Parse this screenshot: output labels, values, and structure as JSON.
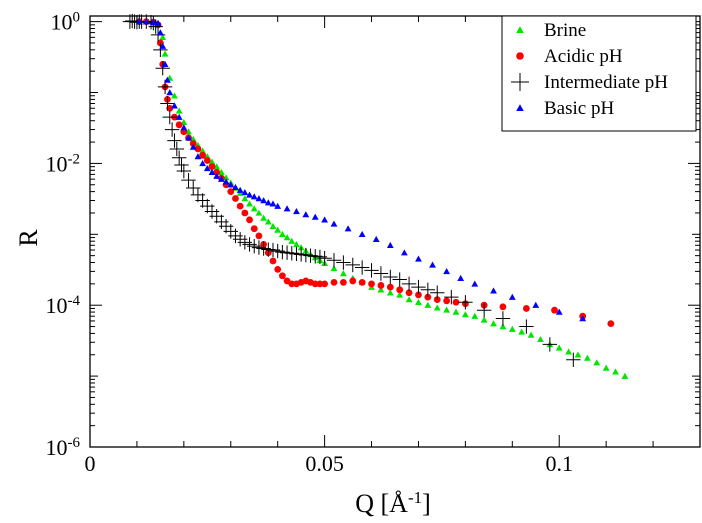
{
  "chart_data": {
    "type": "scatter",
    "xlabel_base": "Q [Å",
    "xlabel_exp": "-1",
    "xlabel_close": "]",
    "ylabel": "R",
    "xlim": [
      0,
      0.13
    ],
    "ylim": [
      1e-06,
      1.2
    ],
    "yscale": "log",
    "x_ticks": [
      {
        "value": 0,
        "label": "0"
      },
      {
        "value": 0.05,
        "label": "0.05"
      },
      {
        "value": 0.1,
        "label": "0.1"
      }
    ],
    "y_ticks": [
      {
        "value": 1e-06,
        "base": "10",
        "exp": "-6"
      },
      {
        "value": 0.0001,
        "base": "10",
        "exp": "-4"
      },
      {
        "value": 0.01,
        "base": "10",
        "exp": "-2"
      },
      {
        "value": 1,
        "base": "10",
        "exp": "0"
      }
    ],
    "legend_position": "top-right",
    "series": [
      {
        "name": "Brine",
        "marker": "triangle",
        "color": "#00e600",
        "points": [
          [
            0.0105,
            1.0
          ],
          [
            0.012,
            1.0
          ],
          [
            0.0135,
            0.98
          ],
          [
            0.0145,
            0.95
          ],
          [
            0.0155,
            0.6
          ],
          [
            0.016,
            0.35
          ],
          [
            0.017,
            0.16
          ],
          [
            0.018,
            0.09
          ],
          [
            0.019,
            0.055
          ],
          [
            0.02,
            0.038
          ],
          [
            0.021,
            0.028
          ],
          [
            0.022,
            0.022
          ],
          [
            0.023,
            0.018
          ],
          [
            0.024,
            0.015
          ],
          [
            0.025,
            0.0125
          ],
          [
            0.026,
            0.0105
          ],
          [
            0.027,
            0.009
          ],
          [
            0.028,
            0.0075
          ],
          [
            0.029,
            0.0063
          ],
          [
            0.03,
            0.0053
          ],
          [
            0.031,
            0.0045
          ],
          [
            0.032,
            0.0038
          ],
          [
            0.033,
            0.0032
          ],
          [
            0.034,
            0.0027
          ],
          [
            0.035,
            0.0023
          ],
          [
            0.036,
            0.002
          ],
          [
            0.037,
            0.0017
          ],
          [
            0.038,
            0.0015
          ],
          [
            0.039,
            0.0013
          ],
          [
            0.04,
            0.00115
          ],
          [
            0.041,
            0.001
          ],
          [
            0.042,
            0.0009
          ],
          [
            0.043,
            0.0008
          ],
          [
            0.044,
            0.00072
          ],
          [
            0.045,
            0.00065
          ],
          [
            0.046,
            0.00058
          ],
          [
            0.047,
            0.00052
          ],
          [
            0.048,
            0.00047
          ],
          [
            0.049,
            0.00043
          ],
          [
            0.05,
            0.00039
          ],
          [
            0.052,
            0.00033
          ],
          [
            0.054,
            0.00028
          ],
          [
            0.056,
            0.00024
          ],
          [
            0.058,
            0.00021
          ],
          [
            0.06,
            0.00018
          ],
          [
            0.062,
            0.000165
          ],
          [
            0.064,
            0.00015
          ],
          [
            0.066,
            0.00014
          ],
          [
            0.068,
            0.00012
          ],
          [
            0.07,
            0.00011
          ],
          [
            0.072,
            0.0001
          ],
          [
            0.074,
            9.2e-05
          ],
          [
            0.076,
            8.6e-05
          ],
          [
            0.078,
            8e-05
          ],
          [
            0.08,
            7.4e-05
          ],
          [
            0.082,
            7e-05
          ],
          [
            0.084,
            6.2e-05
          ],
          [
            0.086,
            5.5e-05
          ],
          [
            0.088,
            5e-05
          ],
          [
            0.09,
            4.6e-05
          ],
          [
            0.092,
            4.2e-05
          ],
          [
            0.094,
            3.8e-05
          ],
          [
            0.096,
            3.3e-05
          ],
          [
            0.098,
            2.8e-05
          ],
          [
            0.1,
            2.5e-05
          ],
          [
            0.102,
            2.2e-05
          ],
          [
            0.104,
            2e-05
          ],
          [
            0.106,
            1.8e-05
          ],
          [
            0.108,
            1.55e-05
          ],
          [
            0.11,
            1.3e-05
          ],
          [
            0.112,
            1.15e-05
          ],
          [
            0.114,
            1e-05
          ]
        ]
      },
      {
        "name": "Acidic pH",
        "marker": "circle",
        "color": "#ff0000",
        "points": [
          [
            0.0105,
            1.0
          ],
          [
            0.012,
            1.0
          ],
          [
            0.0135,
            0.98
          ],
          [
            0.0145,
            0.9
          ],
          [
            0.015,
            0.5
          ],
          [
            0.0155,
            0.25
          ],
          [
            0.016,
            0.12
          ],
          [
            0.0165,
            0.08
          ],
          [
            0.017,
            0.06
          ],
          [
            0.018,
            0.045
          ],
          [
            0.019,
            0.035
          ],
          [
            0.02,
            0.028
          ],
          [
            0.021,
            0.023
          ],
          [
            0.022,
            0.019
          ],
          [
            0.023,
            0.016
          ],
          [
            0.024,
            0.013
          ],
          [
            0.025,
            0.011
          ],
          [
            0.026,
            0.009
          ],
          [
            0.027,
            0.0075
          ],
          [
            0.028,
            0.0062
          ],
          [
            0.029,
            0.005
          ],
          [
            0.03,
            0.004
          ],
          [
            0.031,
            0.0032
          ],
          [
            0.032,
            0.0025
          ],
          [
            0.033,
            0.002
          ],
          [
            0.034,
            0.0016
          ],
          [
            0.035,
            0.0012
          ],
          [
            0.036,
            0.00095
          ],
          [
            0.037,
            0.00072
          ],
          [
            0.038,
            0.00055
          ],
          [
            0.039,
            0.00042
          ],
          [
            0.04,
            0.00032
          ],
          [
            0.041,
            0.00026
          ],
          [
            0.042,
            0.00022
          ],
          [
            0.043,
            0.0002
          ],
          [
            0.044,
            0.0002
          ],
          [
            0.045,
            0.00021
          ],
          [
            0.046,
            0.00022
          ],
          [
            0.047,
            0.00021
          ],
          [
            0.048,
            0.0002
          ],
          [
            0.049,
            0.0002
          ],
          [
            0.05,
            0.0002
          ],
          [
            0.052,
            0.00021
          ],
          [
            0.054,
            0.00021
          ],
          [
            0.056,
            0.00022
          ],
          [
            0.058,
            0.00021
          ],
          [
            0.06,
            0.0002
          ],
          [
            0.062,
            0.00019
          ],
          [
            0.064,
            0.00018
          ],
          [
            0.066,
            0.000165
          ],
          [
            0.068,
            0.00015
          ],
          [
            0.07,
            0.00014
          ],
          [
            0.072,
            0.00013
          ],
          [
            0.074,
            0.00012
          ],
          [
            0.076,
            0.000115
          ],
          [
            0.078,
            0.00011
          ],
          [
            0.08,
            0.000105
          ],
          [
            0.084,
            0.0001
          ],
          [
            0.088,
            9.5e-05
          ],
          [
            0.093,
            9e-05
          ],
          [
            0.099,
            8.5e-05
          ],
          [
            0.105,
            7e-05
          ],
          [
            0.111,
            5.5e-05
          ]
        ]
      },
      {
        "name": "Intermediate pH",
        "marker": "plus",
        "color": "#000000",
        "points": [
          [
            0.0085,
            1.0
          ],
          [
            0.009,
            1.02
          ],
          [
            0.0095,
            1.0
          ],
          [
            0.01,
            0.98
          ],
          [
            0.0105,
            1.0
          ],
          [
            0.011,
            1.0
          ],
          [
            0.012,
            1.0
          ],
          [
            0.013,
            0.98
          ],
          [
            0.0135,
            0.95
          ],
          [
            0.014,
            0.85
          ],
          [
            0.0145,
            0.65
          ],
          [
            0.015,
            0.4
          ],
          [
            0.0155,
            0.22
          ],
          [
            0.016,
            0.12
          ],
          [
            0.0165,
            0.07
          ],
          [
            0.017,
            0.045
          ],
          [
            0.0175,
            0.03
          ],
          [
            0.018,
            0.021
          ],
          [
            0.0185,
            0.016
          ],
          [
            0.019,
            0.012
          ],
          [
            0.0195,
            0.0095
          ],
          [
            0.02,
            0.0078
          ],
          [
            0.021,
            0.0058
          ],
          [
            0.022,
            0.0045
          ],
          [
            0.023,
            0.0036
          ],
          [
            0.024,
            0.003
          ],
          [
            0.025,
            0.0025
          ],
          [
            0.026,
            0.0021
          ],
          [
            0.027,
            0.0018
          ],
          [
            0.028,
            0.0015
          ],
          [
            0.029,
            0.0013
          ],
          [
            0.03,
            0.0011
          ],
          [
            0.031,
            0.00095
          ],
          [
            0.032,
            0.00085
          ],
          [
            0.033,
            0.00077
          ],
          [
            0.034,
            0.00072
          ],
          [
            0.035,
            0.00068
          ],
          [
            0.036,
            0.00065
          ],
          [
            0.037,
            0.00063
          ],
          [
            0.038,
            0.00061
          ],
          [
            0.039,
            0.0006
          ],
          [
            0.04,
            0.00058
          ],
          [
            0.041,
            0.00056
          ],
          [
            0.042,
            0.00055
          ],
          [
            0.043,
            0.00054
          ],
          [
            0.044,
            0.00053
          ],
          [
            0.045,
            0.00052
          ],
          [
            0.046,
            0.00051
          ],
          [
            0.047,
            0.0005
          ],
          [
            0.048,
            0.00049
          ],
          [
            0.049,
            0.00048
          ],
          [
            0.05,
            0.00046
          ],
          [
            0.052,
            0.00043
          ],
          [
            0.054,
            0.0004
          ],
          [
            0.056,
            0.00037
          ],
          [
            0.058,
            0.00034
          ],
          [
            0.06,
            0.00031
          ],
          [
            0.062,
            0.00028
          ],
          [
            0.064,
            0.00025
          ],
          [
            0.066,
            0.00023
          ],
          [
            0.068,
            0.0002
          ],
          [
            0.07,
            0.00018
          ],
          [
            0.072,
            0.000165
          ],
          [
            0.074,
            0.00015
          ],
          [
            0.077,
            0.00013
          ],
          [
            0.08,
            0.00011
          ],
          [
            0.084,
            8.5e-05
          ],
          [
            0.088,
            6.5e-05
          ],
          [
            0.093,
            5e-05
          ],
          [
            0.098,
            2.8e-05
          ],
          [
            0.103,
            1.7e-05
          ]
        ]
      },
      {
        "name": "Basic pH",
        "marker": "triangle",
        "color": "#0000ff",
        "points": [
          [
            0.0105,
            1.0
          ],
          [
            0.012,
            1.0
          ],
          [
            0.0135,
            0.98
          ],
          [
            0.0145,
            0.95
          ],
          [
            0.015,
            0.7
          ],
          [
            0.0155,
            0.45
          ],
          [
            0.016,
            0.25
          ],
          [
            0.0165,
            0.15
          ],
          [
            0.017,
            0.1
          ],
          [
            0.018,
            0.065
          ],
          [
            0.019,
            0.045
          ],
          [
            0.02,
            0.032
          ],
          [
            0.021,
            0.023
          ],
          [
            0.022,
            0.017
          ],
          [
            0.023,
            0.0125
          ],
          [
            0.024,
            0.01
          ],
          [
            0.025,
            0.0085
          ],
          [
            0.026,
            0.0075
          ],
          [
            0.027,
            0.0066
          ],
          [
            0.028,
            0.006
          ],
          [
            0.029,
            0.0055
          ],
          [
            0.03,
            0.005
          ],
          [
            0.031,
            0.0046
          ],
          [
            0.032,
            0.0042
          ],
          [
            0.033,
            0.0039
          ],
          [
            0.034,
            0.0036
          ],
          [
            0.035,
            0.0034
          ],
          [
            0.036,
            0.0032
          ],
          [
            0.037,
            0.003
          ],
          [
            0.038,
            0.0028
          ],
          [
            0.039,
            0.0027
          ],
          [
            0.04,
            0.0025
          ],
          [
            0.042,
            0.0023
          ],
          [
            0.044,
            0.0021
          ],
          [
            0.046,
            0.0019
          ],
          [
            0.048,
            0.00175
          ],
          [
            0.05,
            0.0016
          ],
          [
            0.052,
            0.0014
          ],
          [
            0.055,
            0.0012
          ],
          [
            0.058,
            0.001
          ],
          [
            0.061,
            0.00085
          ],
          [
            0.064,
            0.0007
          ],
          [
            0.067,
            0.00055
          ],
          [
            0.07,
            0.00045
          ],
          [
            0.073,
            0.00037
          ],
          [
            0.076,
            0.0003
          ],
          [
            0.079,
            0.00024
          ],
          [
            0.082,
            0.0002
          ],
          [
            0.086,
            0.00016
          ],
          [
            0.09,
            0.00013
          ],
          [
            0.095,
            0.0001
          ],
          [
            0.1,
            8e-05
          ],
          [
            0.105,
            6.5e-05
          ]
        ]
      }
    ]
  }
}
